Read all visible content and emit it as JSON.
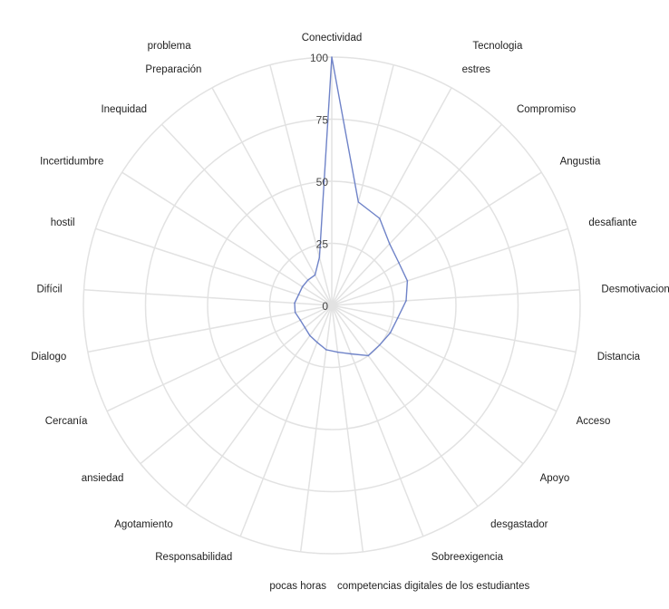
{
  "chart_data": {
    "type": "radar",
    "axes": [
      "Conectividad",
      "Tecnologia",
      "estres",
      "Compromiso",
      "Angustia",
      "desafiante",
      "Desmotivacion",
      "Distancia",
      "Acceso",
      "Apoyo",
      "desgastador",
      "Sobreexigencia",
      "competencias digitales de los estudiantes",
      "pocas horas",
      "Responsabilidad",
      "Agotamiento",
      "ansiedad",
      "Cercanía",
      "Dialogo",
      "Difícil",
      "hostil",
      "Incertidumbre",
      "Inequidad",
      "Preparación",
      "problema"
    ],
    "values": [
      100,
      43,
      40,
      34,
      32,
      32,
      30,
      27,
      26,
      25,
      25,
      21,
      19,
      18,
      16,
      15,
      14,
      14,
      15,
      15,
      14,
      14,
      14,
      14,
      20
    ],
    "rlim": [
      0,
      100
    ],
    "ticks": [
      "0",
      "25",
      "50",
      "75",
      "100"
    ],
    "tick_values": [
      0,
      25,
      50,
      75,
      100
    ],
    "grid": true,
    "line_color": "#6f83c8",
    "grid_color": "#e2e2e2"
  }
}
